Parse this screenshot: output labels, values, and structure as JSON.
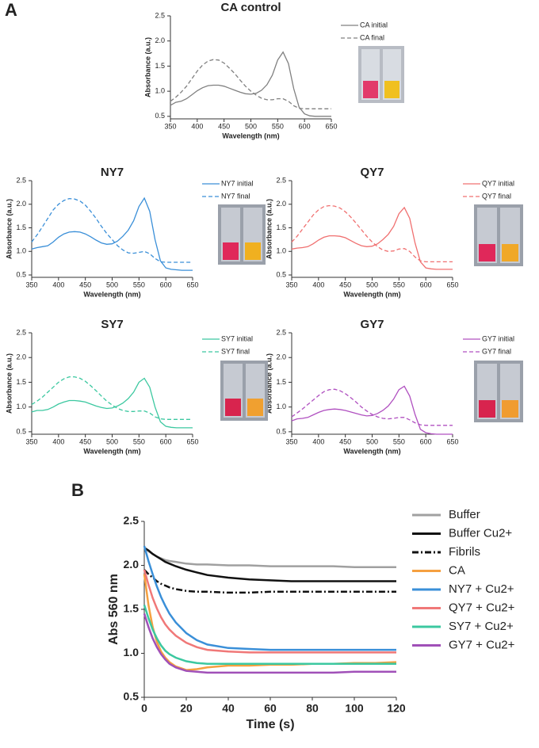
{
  "chart_data": [
    {
      "type": "line",
      "panel_label": "A",
      "title": "CA control",
      "xlabel": "Wavelength (nm)",
      "ylabel": "Absorbance (a.u.)",
      "x": [
        350,
        360,
        370,
        380,
        390,
        400,
        410,
        420,
        430,
        440,
        450,
        460,
        470,
        480,
        490,
        500,
        510,
        520,
        530,
        540,
        550,
        560,
        570,
        580,
        590,
        600,
        610,
        620,
        630,
        640,
        650
      ],
      "series": [
        {
          "name": "CA initial",
          "color": "#808080",
          "style": "solid",
          "values": [
            0.72,
            0.78,
            0.8,
            0.85,
            0.93,
            1.01,
            1.07,
            1.11,
            1.12,
            1.12,
            1.1,
            1.06,
            1.02,
            0.98,
            0.95,
            0.94,
            0.96,
            1.02,
            1.13,
            1.32,
            1.62,
            1.78,
            1.55,
            1.05,
            0.68,
            0.55,
            0.51,
            0.5,
            0.5,
            0.5,
            0.5
          ]
        },
        {
          "name": "CA final",
          "color": "#808080",
          "style": "dashed",
          "values": [
            0.8,
            0.88,
            0.98,
            1.1,
            1.25,
            1.4,
            1.52,
            1.6,
            1.63,
            1.62,
            1.56,
            1.46,
            1.35,
            1.22,
            1.1,
            1.0,
            0.92,
            0.86,
            0.83,
            0.83,
            0.85,
            0.85,
            0.8,
            0.71,
            0.66,
            0.65,
            0.65,
            0.65,
            0.65,
            0.65,
            0.65
          ]
        }
      ],
      "xlim": [
        350,
        650
      ],
      "ylim": [
        0.45,
        2.5
      ],
      "xticks": [
        350,
        400,
        450,
        500,
        550,
        600,
        650
      ],
      "yticks": [
        {
          "value": 0.5,
          "label": "0.5"
        },
        {
          "value": 1,
          "label": "1.0"
        },
        {
          "value": 1.5,
          "label": "1.5"
        },
        {
          "value": 2,
          "label": "2.0"
        },
        {
          "value": 2.5,
          "label": "2.5"
        }
      ]
    },
    {
      "type": "line",
      "title": "NY7",
      "xlabel": "Wavelength (nm)",
      "ylabel": "Absorbance (a.u.)",
      "x": [
        350,
        360,
        370,
        380,
        390,
        400,
        410,
        420,
        430,
        440,
        450,
        460,
        470,
        480,
        490,
        500,
        510,
        520,
        530,
        540,
        550,
        560,
        570,
        580,
        590,
        600,
        610,
        620,
        630,
        640,
        650
      ],
      "series": [
        {
          "name": "NY7 initial",
          "color": "#3a8fd8",
          "style": "solid",
          "values": [
            1.05,
            1.08,
            1.1,
            1.12,
            1.2,
            1.3,
            1.37,
            1.41,
            1.42,
            1.41,
            1.37,
            1.31,
            1.24,
            1.18,
            1.15,
            1.16,
            1.22,
            1.32,
            1.45,
            1.65,
            1.95,
            2.13,
            1.85,
            1.25,
            0.8,
            0.65,
            0.62,
            0.61,
            0.6,
            0.6,
            0.6
          ]
        },
        {
          "name": "NY7 final",
          "color": "#3a8fd8",
          "style": "dashed",
          "values": [
            1.2,
            1.35,
            1.52,
            1.7,
            1.88,
            2.0,
            2.08,
            2.12,
            2.11,
            2.07,
            1.98,
            1.85,
            1.7,
            1.53,
            1.38,
            1.25,
            1.12,
            1.03,
            0.97,
            0.96,
            0.98,
            1.0,
            0.95,
            0.85,
            0.78,
            0.77,
            0.77,
            0.77,
            0.77,
            0.77,
            0.77
          ]
        }
      ],
      "xlim": [
        350,
        650
      ],
      "ylim": [
        0.45,
        2.5
      ],
      "xticks": [
        350,
        400,
        450,
        500,
        550,
        600,
        650
      ],
      "yticks": [
        {
          "value": 0.5,
          "label": "0.5"
        },
        {
          "value": 1,
          "label": "1.0"
        },
        {
          "value": 1.5,
          "label": "1.5"
        },
        {
          "value": 2,
          "label": "2.0"
        },
        {
          "value": 2.5,
          "label": "2.5"
        }
      ]
    },
    {
      "type": "line",
      "title": "QY7",
      "xlabel": "Wavelength (nm)",
      "ylabel": "Absorbance (a.u.)",
      "x": [
        350,
        360,
        370,
        380,
        390,
        400,
        410,
        420,
        430,
        440,
        450,
        460,
        470,
        480,
        490,
        500,
        510,
        520,
        530,
        540,
        550,
        560,
        570,
        580,
        590,
        600,
        610,
        620,
        630,
        640,
        650
      ],
      "series": [
        {
          "name": "QY7 initial",
          "color": "#f07070",
          "style": "solid",
          "values": [
            1.05,
            1.07,
            1.08,
            1.1,
            1.16,
            1.24,
            1.3,
            1.33,
            1.33,
            1.32,
            1.29,
            1.23,
            1.17,
            1.12,
            1.1,
            1.11,
            1.16,
            1.25,
            1.36,
            1.53,
            1.8,
            1.93,
            1.7,
            1.18,
            0.78,
            0.65,
            0.63,
            0.62,
            0.62,
            0.62,
            0.62
          ]
        },
        {
          "name": "QY7 final",
          "color": "#f07070",
          "style": "dashed",
          "values": [
            1.2,
            1.32,
            1.47,
            1.62,
            1.77,
            1.88,
            1.95,
            1.97,
            1.96,
            1.92,
            1.84,
            1.73,
            1.6,
            1.46,
            1.32,
            1.2,
            1.1,
            1.03,
            1.0,
            1.01,
            1.05,
            1.06,
            1.0,
            0.88,
            0.8,
            0.78,
            0.78,
            0.78,
            0.78,
            0.78,
            0.78
          ]
        }
      ],
      "xlim": [
        350,
        650
      ],
      "ylim": [
        0.45,
        2.5
      ],
      "xticks": [
        350,
        400,
        450,
        500,
        550,
        600,
        650
      ],
      "yticks": [
        {
          "value": 0.5,
          "label": "0.5"
        },
        {
          "value": 1,
          "label": "1.0"
        },
        {
          "value": 1.5,
          "label": "1.5"
        },
        {
          "value": 2,
          "label": "2.0"
        },
        {
          "value": 2.5,
          "label": "2.5"
        }
      ]
    },
    {
      "type": "line",
      "title": "SY7",
      "xlabel": "Wavelength (nm)",
      "ylabel": "Absorbance (a.u.)",
      "x": [
        350,
        360,
        370,
        380,
        390,
        400,
        410,
        420,
        430,
        440,
        450,
        460,
        470,
        480,
        490,
        500,
        510,
        520,
        530,
        540,
        550,
        560,
        570,
        580,
        590,
        600,
        610,
        620,
        630,
        640,
        650
      ],
      "series": [
        {
          "name": "SY7 initial",
          "color": "#3cc8a0",
          "style": "solid",
          "values": [
            0.9,
            0.93,
            0.93,
            0.95,
            1.0,
            1.06,
            1.1,
            1.13,
            1.13,
            1.12,
            1.1,
            1.06,
            1.02,
            0.99,
            0.97,
            0.98,
            1.02,
            1.08,
            1.17,
            1.3,
            1.5,
            1.58,
            1.4,
            1.0,
            0.7,
            0.61,
            0.59,
            0.58,
            0.58,
            0.58,
            0.58
          ]
        },
        {
          "name": "SY7 final",
          "color": "#3cc8a0",
          "style": "dashed",
          "values": [
            1.05,
            1.12,
            1.2,
            1.3,
            1.4,
            1.5,
            1.57,
            1.61,
            1.61,
            1.58,
            1.52,
            1.43,
            1.33,
            1.22,
            1.12,
            1.04,
            0.97,
            0.93,
            0.91,
            0.91,
            0.92,
            0.92,
            0.88,
            0.8,
            0.76,
            0.75,
            0.75,
            0.75,
            0.75,
            0.75,
            0.75
          ]
        }
      ],
      "xlim": [
        350,
        650
      ],
      "ylim": [
        0.45,
        2.5
      ],
      "xticks": [
        350,
        400,
        450,
        500,
        550,
        600,
        650
      ],
      "yticks": [
        {
          "value": 0.5,
          "label": "0.5"
        },
        {
          "value": 1,
          "label": "1.0"
        },
        {
          "value": 1.5,
          "label": "1.5"
        },
        {
          "value": 2,
          "label": "2.0"
        },
        {
          "value": 2.5,
          "label": "2.5"
        }
      ]
    },
    {
      "type": "line",
      "title": "GY7",
      "xlabel": "Wavelength (nm)",
      "ylabel": "Absorbance (a.u.)",
      "x": [
        350,
        360,
        370,
        380,
        390,
        400,
        410,
        420,
        430,
        440,
        450,
        460,
        470,
        480,
        490,
        500,
        510,
        520,
        530,
        540,
        550,
        560,
        570,
        580,
        590,
        600,
        610,
        620,
        630,
        640,
        650
      ],
      "series": [
        {
          "name": "GY7 initial",
          "color": "#b050c0",
          "style": "solid",
          "values": [
            0.72,
            0.76,
            0.77,
            0.79,
            0.84,
            0.89,
            0.93,
            0.95,
            0.96,
            0.95,
            0.93,
            0.9,
            0.87,
            0.84,
            0.82,
            0.83,
            0.87,
            0.93,
            1.02,
            1.16,
            1.35,
            1.42,
            1.22,
            0.85,
            0.55,
            0.48,
            0.46,
            0.45,
            0.45,
            0.45,
            0.45
          ]
        },
        {
          "name": "GY7 final",
          "color": "#b050c0",
          "style": "dashed",
          "values": [
            0.8,
            0.88,
            0.96,
            1.05,
            1.14,
            1.23,
            1.31,
            1.35,
            1.36,
            1.33,
            1.27,
            1.19,
            1.1,
            1.0,
            0.92,
            0.85,
            0.8,
            0.77,
            0.76,
            0.77,
            0.79,
            0.79,
            0.74,
            0.68,
            0.64,
            0.63,
            0.63,
            0.63,
            0.63,
            0.63,
            0.63
          ]
        }
      ],
      "xlim": [
        350,
        650
      ],
      "ylim": [
        0.45,
        2.5
      ],
      "xticks": [
        350,
        400,
        450,
        500,
        550,
        600,
        650
      ],
      "yticks": [
        {
          "value": 0.5,
          "label": "0.5"
        },
        {
          "value": 1,
          "label": "1.0"
        },
        {
          "value": 1.5,
          "label": "1.5"
        },
        {
          "value": 2,
          "label": "2.0"
        },
        {
          "value": 2.5,
          "label": "2.5"
        }
      ]
    },
    {
      "type": "line",
      "panel_label": "B",
      "xlabel": "Time (s)",
      "ylabel": "Abs 560 nm",
      "x": [
        0,
        2,
        4,
        6,
        8,
        10,
        12,
        15,
        20,
        25,
        30,
        40,
        50,
        60,
        70,
        80,
        90,
        100,
        110,
        120
      ],
      "series": [
        {
          "name": "Buffer",
          "color": "#a0a0a0",
          "style": "solid",
          "values": [
            2.2,
            2.16,
            2.13,
            2.1,
            2.08,
            2.06,
            2.05,
            2.04,
            2.02,
            2.01,
            2.01,
            2.0,
            2.0,
            1.99,
            1.99,
            1.99,
            1.99,
            1.98,
            1.98,
            1.98
          ]
        },
        {
          "name": "Buffer Cu2+",
          "color": "#111111",
          "style": "solid",
          "values": [
            2.2,
            2.17,
            2.13,
            2.1,
            2.07,
            2.04,
            2.02,
            1.99,
            1.95,
            1.92,
            1.89,
            1.86,
            1.84,
            1.83,
            1.82,
            1.82,
            1.82,
            1.82,
            1.82,
            1.82
          ]
        },
        {
          "name": "Fibrils",
          "color": "#111111",
          "style": "dashdot",
          "values": [
            1.95,
            1.9,
            1.86,
            1.82,
            1.79,
            1.77,
            1.75,
            1.73,
            1.71,
            1.7,
            1.7,
            1.69,
            1.69,
            1.7,
            1.7,
            1.7,
            1.7,
            1.7,
            1.7,
            1.7
          ]
        },
        {
          "name": "CA",
          "color": "#f5a040",
          "style": "solid",
          "values": [
            1.9,
            1.55,
            1.3,
            1.13,
            1.02,
            0.95,
            0.9,
            0.85,
            0.81,
            0.82,
            0.84,
            0.86,
            0.86,
            0.87,
            0.87,
            0.88,
            0.88,
            0.89,
            0.89,
            0.9
          ]
        },
        {
          "name": "NY7 + Cu2+",
          "color": "#3a8fd8",
          "style": "solid",
          "values": [
            2.22,
            2.05,
            1.9,
            1.76,
            1.64,
            1.54,
            1.45,
            1.35,
            1.23,
            1.15,
            1.1,
            1.06,
            1.05,
            1.04,
            1.04,
            1.04,
            1.04,
            1.04,
            1.04,
            1.04
          ]
        },
        {
          "name": "QY7 + Cu2+",
          "color": "#f07878",
          "style": "solid",
          "values": [
            1.95,
            1.78,
            1.63,
            1.51,
            1.41,
            1.33,
            1.27,
            1.2,
            1.12,
            1.07,
            1.04,
            1.02,
            1.01,
            1.01,
            1.01,
            1.01,
            1.01,
            1.01,
            1.01,
            1.01
          ]
        },
        {
          "name": "SY7 + Cu2+",
          "color": "#3cc8a0",
          "style": "solid",
          "values": [
            1.55,
            1.4,
            1.27,
            1.17,
            1.09,
            1.03,
            0.99,
            0.95,
            0.91,
            0.89,
            0.88,
            0.88,
            0.88,
            0.88,
            0.88,
            0.88,
            0.88,
            0.88,
            0.88,
            0.88
          ]
        },
        {
          "name": "GY7 + Cu2+",
          "color": "#a050b8",
          "style": "solid",
          "values": [
            1.45,
            1.3,
            1.17,
            1.07,
            0.99,
            0.93,
            0.88,
            0.84,
            0.8,
            0.79,
            0.78,
            0.78,
            0.78,
            0.78,
            0.78,
            0.78,
            0.78,
            0.79,
            0.79,
            0.79
          ]
        }
      ],
      "xlim": [
        0,
        120
      ],
      "ylim": [
        0.5,
        2.5
      ],
      "xticks": [
        0,
        20,
        40,
        60,
        80,
        100,
        120
      ],
      "yticks": [
        {
          "value": 0.5,
          "label": "0.5"
        },
        {
          "value": 1,
          "label": "1.0"
        },
        {
          "value": 1.5,
          "label": "1.5"
        },
        {
          "value": 2,
          "label": "2.0"
        },
        {
          "value": 2.5,
          "label": "2.5"
        }
      ]
    }
  ]
}
